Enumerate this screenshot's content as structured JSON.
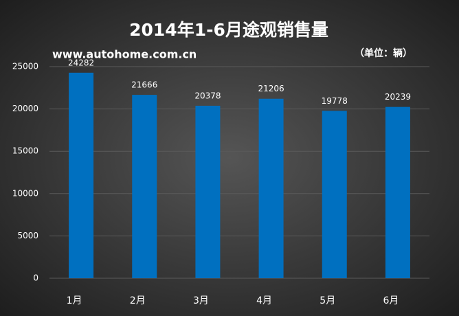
{
  "chart_data": {
    "type": "bar",
    "title": "2014年1-6月途观销售量",
    "subtitle": "www.autohome.com.cn",
    "annotation": "（单位：辆）",
    "categories": [
      "1月",
      "2月",
      "3月",
      "4月",
      "5月",
      "6月"
    ],
    "values": [
      24282,
      21666,
      20378,
      21206,
      19778,
      20239
    ],
    "color": "#0070c0",
    "ylim": [
      0,
      25000
    ],
    "yticks": [
      0,
      5000,
      10000,
      15000,
      20000,
      25000
    ],
    "grid": true
  }
}
